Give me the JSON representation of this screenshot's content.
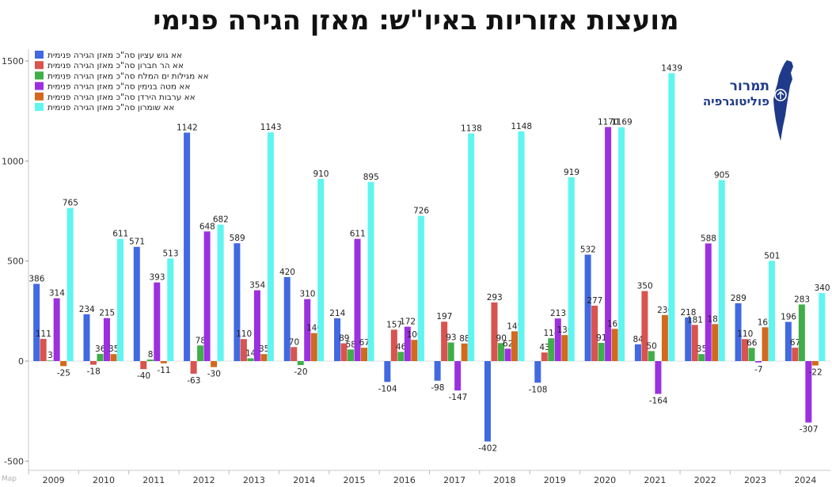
{
  "title": "מועצות אזוריות באיו\"ש: מאזן הגירה פנימי",
  "logo": {
    "line1": "תמרור",
    "line2": "פוליטוגרפיה"
  },
  "watermark": "Map",
  "chart_data": {
    "type": "bar",
    "title": "מועצות אזוריות באיו\"ש: מאזן הגירה פנימי",
    "xlabel": "",
    "ylabel": "",
    "ylim": [
      -500,
      1500
    ],
    "yticks": [
      -500,
      0,
      500,
      1000,
      1500
    ],
    "grid": false,
    "legend_position": "top-left",
    "categories": [
      "2009",
      "2010",
      "2011",
      "2012",
      "2013",
      "2014",
      "2015",
      "2016",
      "2017",
      "2018",
      "2019",
      "2020",
      "2021",
      "2022",
      "2023",
      "2024"
    ],
    "series": [
      {
        "name": "אא גוש עציון סה\"כ מאזן הגירה פנימית",
        "color": "#4169e1",
        "values": [
          386,
          234,
          571,
          1142,
          589,
          420,
          214,
          -104,
          -98,
          -402,
          -108,
          532,
          84,
          218,
          289,
          196
        ]
      },
      {
        "name": "אא הר חברון סה\"כ מאזן הגירה פנימית",
        "color": "#d9534f",
        "values": [
          111,
          -18,
          -40,
          -63,
          110,
          70,
          89,
          157,
          197,
          293,
          43,
          277,
          350,
          181,
          110,
          67
        ]
      },
      {
        "name": "אא מגילות ים המלח סה\"כ מאזן הגירה פנימית",
        "color": "#3fae49",
        "values": [
          3,
          36,
          8,
          78,
          14,
          -20,
          58,
          46,
          93,
          90,
          114,
          91,
          50,
          35,
          66,
          283
        ]
      },
      {
        "name": "אא מטה בנימין סה\"כ מאזן הגירה פנימית",
        "color": "#9b30e0",
        "values": [
          314,
          215,
          393,
          648,
          354,
          310,
          611,
          172,
          -147,
          62,
          213,
          1170,
          -164,
          588,
          -7,
          -307
        ]
      },
      {
        "name": "אא ערבות הירדן סה\"כ מאזן הגירה פנימית",
        "color": "#d2691e",
        "values": [
          -25,
          35,
          -11,
          -30,
          35,
          140,
          67,
          106,
          88,
          149,
          130,
          161,
          230,
          185,
          169,
          -22
        ]
      },
      {
        "name": "אא שומרון סה\"כ מאזן הגירה פנימית",
        "color": "#5ff5f0",
        "values": [
          765,
          611,
          513,
          682,
          1143,
          910,
          895,
          726,
          1138,
          1148,
          919,
          1169,
          1439,
          905,
          501,
          340
        ]
      }
    ]
  }
}
